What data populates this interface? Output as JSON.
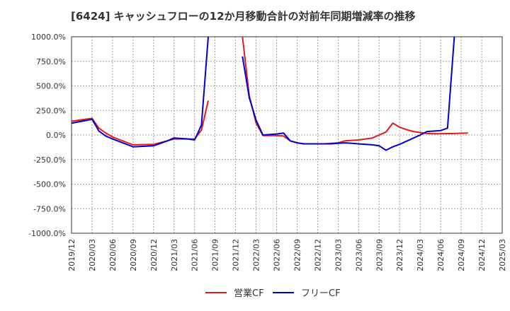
{
  "chart_data": {
    "type": "line",
    "title": "[6424]  キャッシュフローの12か月移動合計の対前年同期増減率の推移",
    "xlabel": "",
    "ylabel": "",
    "ylim": [
      -1000,
      1000
    ],
    "y_ticks": [
      "1000.0%",
      "750.0%",
      "500.0%",
      "250.0%",
      "0.0%",
      "-250.0%",
      "-500.0%",
      "-750.0%",
      "-1000.0%"
    ],
    "x_ticks": [
      "2019/12",
      "2020/03",
      "2020/06",
      "2020/09",
      "2020/12",
      "2021/03",
      "2021/06",
      "2021/09",
      "2021/12",
      "2022/03",
      "2022/06",
      "2022/09",
      "2022/12",
      "2023/03",
      "2023/06",
      "2023/09",
      "2023/12",
      "2024/03",
      "2024/06",
      "2024/09",
      "2024/12",
      "2025/03"
    ],
    "x_range_months": [
      0,
      63
    ],
    "series": [
      {
        "name": "営業CF",
        "color": "#e31a1c",
        "points": [
          [
            0,
            140
          ],
          [
            3,
            170
          ],
          [
            4,
            70
          ],
          [
            5,
            20
          ],
          [
            6,
            -20
          ],
          [
            9,
            -100
          ],
          [
            12,
            -95
          ],
          [
            14,
            -60
          ],
          [
            15,
            -40
          ],
          [
            17,
            -40
          ],
          [
            18,
            -40
          ],
          [
            19,
            50
          ],
          [
            20,
            350
          ],
          [
            null,
            null
          ],
          [
            25,
            1000
          ],
          [
            26,
            400
          ],
          [
            27,
            120
          ],
          [
            28,
            -5
          ],
          [
            30,
            -5
          ],
          [
            31,
            -10
          ],
          [
            32,
            -60
          ],
          [
            33,
            -80
          ],
          [
            34,
            -90
          ],
          [
            37,
            -90
          ],
          [
            38,
            -85
          ],
          [
            39,
            -80
          ],
          [
            40,
            -60
          ],
          [
            41,
            -55
          ],
          [
            42,
            -50
          ],
          [
            43,
            -40
          ],
          [
            44,
            -30
          ],
          [
            45,
            0
          ],
          [
            46,
            30
          ],
          [
            47,
            120
          ],
          [
            48,
            80
          ],
          [
            49,
            55
          ],
          [
            50,
            35
          ],
          [
            51,
            25
          ],
          [
            52,
            15
          ],
          [
            53,
            12
          ],
          [
            56,
            15
          ],
          [
            57,
            18
          ],
          [
            58,
            20
          ]
        ]
      },
      {
        "name": "フリーCF",
        "color": "#0000cc",
        "points": [
          [
            0,
            120
          ],
          [
            3,
            160
          ],
          [
            4,
            40
          ],
          [
            5,
            -10
          ],
          [
            6,
            -40
          ],
          [
            9,
            -120
          ],
          [
            12,
            -110
          ],
          [
            14,
            -60
          ],
          [
            15,
            -30
          ],
          [
            17,
            -40
          ],
          [
            18,
            -50
          ],
          [
            19,
            100
          ],
          [
            20,
            1000
          ],
          [
            null,
            null
          ],
          [
            25,
            800
          ],
          [
            26,
            380
          ],
          [
            27,
            150
          ],
          [
            28,
            0
          ],
          [
            30,
            10
          ],
          [
            31,
            20
          ],
          [
            32,
            -60
          ],
          [
            33,
            -80
          ],
          [
            34,
            -90
          ],
          [
            37,
            -90
          ],
          [
            38,
            -90
          ],
          [
            39,
            -85
          ],
          [
            40,
            -80
          ],
          [
            41,
            -85
          ],
          [
            42,
            -90
          ],
          [
            43,
            -95
          ],
          [
            44,
            -100
          ],
          [
            45,
            -110
          ],
          [
            46,
            -155
          ],
          [
            47,
            -120
          ],
          [
            48,
            -95
          ],
          [
            51,
            0
          ],
          [
            52,
            35
          ],
          [
            54,
            45
          ],
          [
            55,
            70
          ],
          [
            56,
            1000
          ]
        ]
      }
    ],
    "legend": [
      "営業CF",
      "フリーCF"
    ],
    "legend_position": "bottom-center",
    "grid": true
  }
}
